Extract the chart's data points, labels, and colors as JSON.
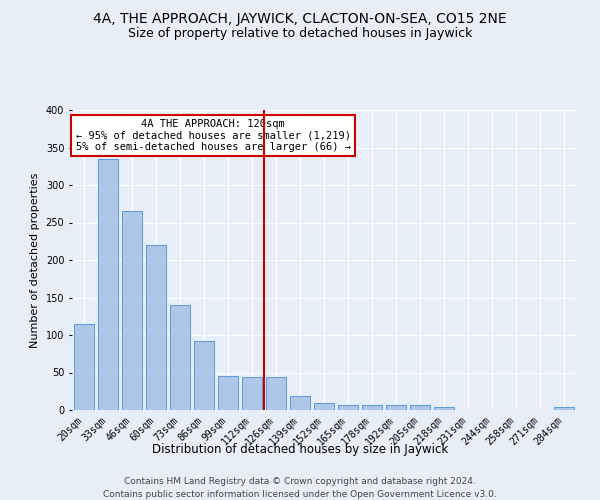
{
  "title1": "4A, THE APPROACH, JAYWICK, CLACTON-ON-SEA, CO15 2NE",
  "title2": "Size of property relative to detached houses in Jaywick",
  "xlabel": "Distribution of detached houses by size in Jaywick",
  "ylabel": "Number of detached properties",
  "categories": [
    "20sqm",
    "33sqm",
    "46sqm",
    "60sqm",
    "73sqm",
    "86sqm",
    "99sqm",
    "112sqm",
    "126sqm",
    "139sqm",
    "152sqm",
    "165sqm",
    "178sqm",
    "192sqm",
    "205sqm",
    "218sqm",
    "231sqm",
    "244sqm",
    "258sqm",
    "271sqm",
    "284sqm"
  ],
  "values": [
    115,
    335,
    265,
    220,
    140,
    92,
    45,
    44,
    44,
    19,
    9,
    7,
    7,
    7,
    7,
    4,
    0,
    0,
    0,
    0,
    4
  ],
  "bar_color": "#aec6e8",
  "bar_edge_color": "#5b9bd5",
  "vline_x": 7.5,
  "vline_color": "#cc0000",
  "annotation_text": "4A THE APPROACH: 120sqm\n← 95% of detached houses are smaller (1,219)\n5% of semi-detached houses are larger (66) →",
  "annotation_box_color": "#ffffff",
  "annotation_box_edge": "#cc0000",
  "ylim": [
    0,
    400
  ],
  "yticks": [
    0,
    50,
    100,
    150,
    200,
    250,
    300,
    350,
    400
  ],
  "footer1": "Contains HM Land Registry data © Crown copyright and database right 2024.",
  "footer2": "Contains public sector information licensed under the Open Government Licence v3.0.",
  "bg_color": "#e8eef8",
  "grid_color": "#ffffff",
  "title1_fontsize": 10,
  "title2_fontsize": 9,
  "xlabel_fontsize": 8.5,
  "ylabel_fontsize": 8,
  "tick_fontsize": 7,
  "footer_fontsize": 6.5,
  "annot_fontsize": 7.5
}
